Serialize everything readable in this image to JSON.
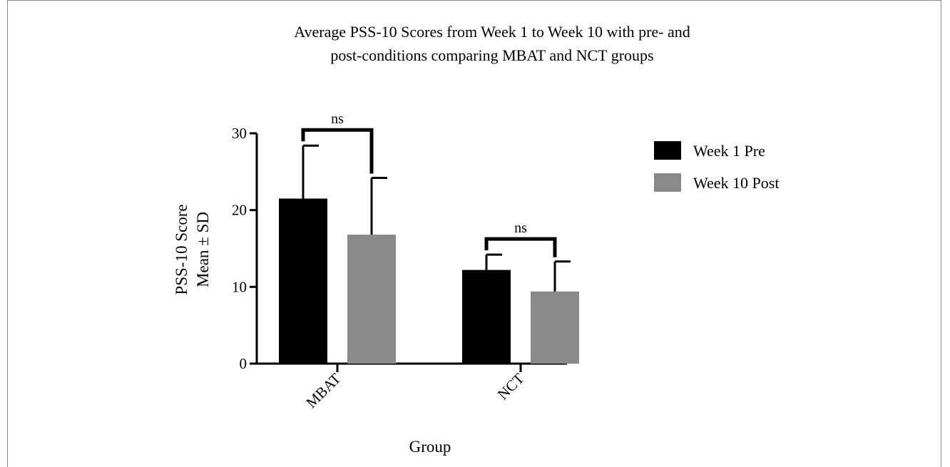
{
  "chart_data": {
    "type": "bar",
    "title_lines": [
      "Average PSS-10 Scores from Week 1 to Week 10 with pre- and",
      "post-conditions comparing MBAT and NCT groups"
    ],
    "xlabel": "Group",
    "ylabel_lines": [
      "PSS-10 Score",
      "Mean ± SD"
    ],
    "categories": [
      "MBAT",
      "NCT"
    ],
    "ylim": [
      0,
      30
    ],
    "yticks": [
      "0",
      "10",
      "20",
      "30"
    ],
    "series": [
      {
        "name": "Week 1 Pre",
        "color": "#000000",
        "values": [
          21.5,
          12.2
        ],
        "sd": [
          6.9,
          2.0
        ]
      },
      {
        "name": "Week 10 Post",
        "color": "#8a8a8a",
        "values": [
          16.8,
          9.4
        ],
        "sd": [
          7.4,
          3.9
        ]
      }
    ],
    "annotations": [
      {
        "category": "MBAT",
        "text": "ns"
      },
      {
        "category": "NCT",
        "text": "ns"
      }
    ],
    "legend_position": "right",
    "grid": false
  }
}
